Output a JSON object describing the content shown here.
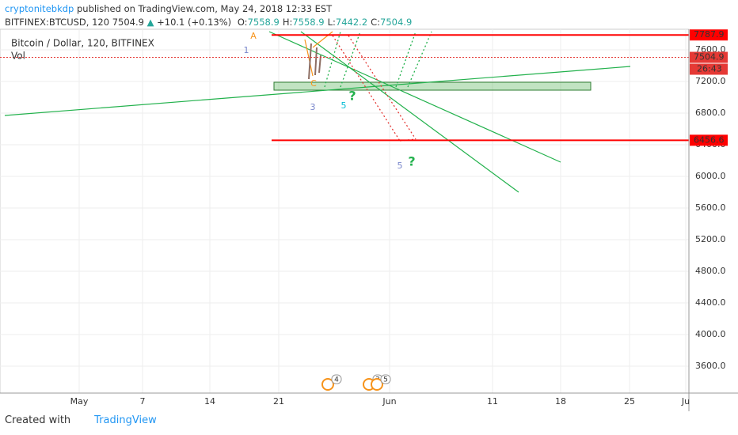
{
  "header": {
    "author": "cryptonitebkdp",
    "published": "published on TradingView.com, May 24, 2018 12:33 EST",
    "symbol": "BITFINEX:BTCUSD, 120",
    "last": "7504.9",
    "change": "+10.1 (+0.13%)",
    "ohlc": [
      {
        "key": "O:",
        "value": "7558.9"
      },
      {
        "key": "H:",
        "value": "7558.9"
      },
      {
        "key": "L:",
        "value": "7442.2"
      },
      {
        "key": "C:",
        "value": "7504.9"
      }
    ]
  },
  "legend": {
    "title": "Bitcoin / Dollar, 120, BITFINEX",
    "volume": "Vol"
  },
  "price_axis": {
    "ylim": [
      3260,
      7860
    ],
    "yticks": [
      {
        "value": 3600,
        "label": "3600.0"
      },
      {
        "value": 4000,
        "label": "4000.0"
      },
      {
        "value": 4400,
        "label": "4400.0"
      },
      {
        "value": 4800,
        "label": "4800.0"
      },
      {
        "value": 5200,
        "label": "5200.0"
      },
      {
        "value": 5600,
        "label": "5600.0"
      },
      {
        "value": 6000,
        "label": "6000.0"
      },
      {
        "value": 6400,
        "label": "6400.0"
      },
      {
        "value": 6800,
        "label": "6800.0"
      },
      {
        "value": 7200,
        "label": "7200.0"
      },
      {
        "value": 7600,
        "label": "7600.0"
      }
    ],
    "markers": [
      {
        "value": 7787.9,
        "color": "#ff0000"
      },
      {
        "value": 7504.9,
        "color": "#e53935"
      },
      {
        "value": 6456.6,
        "color": "#ff0000"
      }
    ],
    "countdown": "26:43"
  },
  "time_axis": [
    "May",
    "7",
    "14",
    "21",
    "Jun",
    "11",
    "18",
    "25",
    "Ju"
  ],
  "annotations": [
    "A",
    "1",
    "C",
    "3",
    "5",
    "?",
    "5",
    "?"
  ],
  "events": [
    "4",
    "3",
    "5"
  ],
  "footer": {
    "created": "Created with",
    "brand": "TradingView"
  }
}
